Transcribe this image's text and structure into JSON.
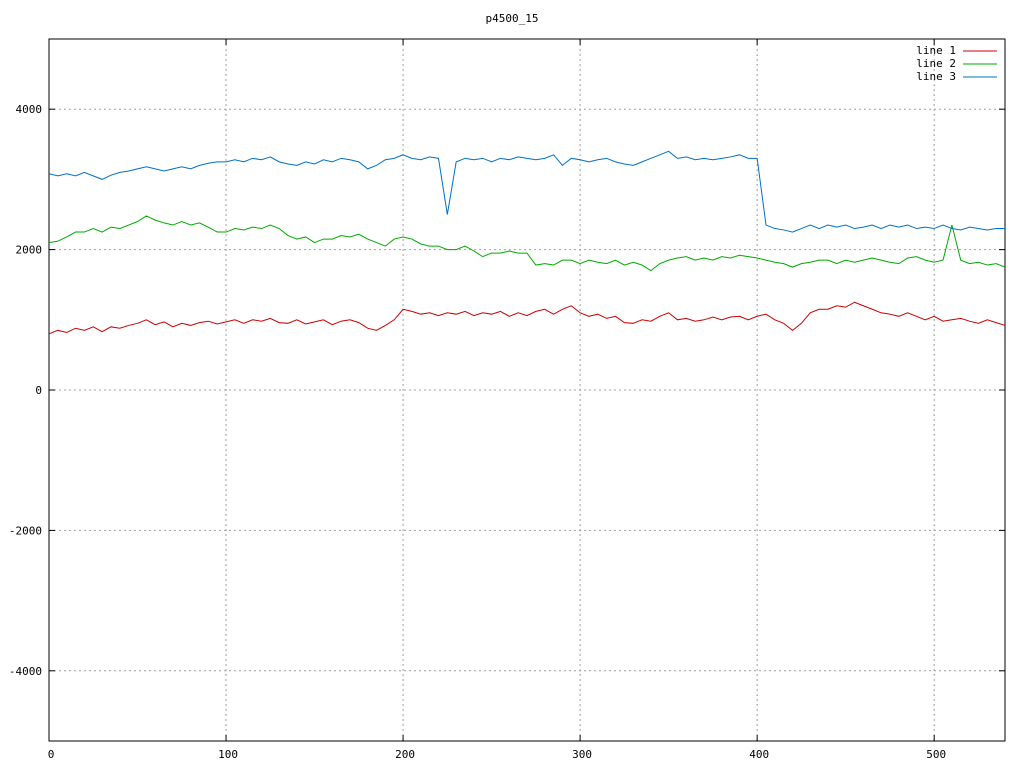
{
  "chart_data": {
    "type": "line",
    "title": "p4500_15",
    "x": [
      0,
      5,
      10,
      15,
      20,
      25,
      30,
      35,
      40,
      45,
      50,
      55,
      60,
      65,
      70,
      75,
      80,
      85,
      90,
      95,
      100,
      105,
      110,
      115,
      120,
      125,
      130,
      135,
      140,
      145,
      150,
      155,
      160,
      165,
      170,
      175,
      180,
      185,
      190,
      195,
      200,
      205,
      210,
      215,
      220,
      225,
      230,
      235,
      240,
      245,
      250,
      255,
      260,
      265,
      270,
      275,
      280,
      285,
      290,
      295,
      300,
      305,
      310,
      315,
      320,
      325,
      330,
      335,
      340,
      345,
      350,
      355,
      360,
      365,
      370,
      375,
      380,
      385,
      390,
      395,
      400,
      405,
      410,
      415,
      420,
      425,
      430,
      435,
      440,
      445,
      450,
      455,
      460,
      465,
      470,
      475,
      480,
      485,
      490,
      495,
      500,
      505,
      510,
      515,
      520,
      525,
      530,
      535,
      540
    ],
    "series": [
      {
        "name": "line 1",
        "color": "#cc0000",
        "values": [
          800,
          850,
          820,
          880,
          850,
          900,
          830,
          900,
          880,
          920,
          950,
          1000,
          930,
          970,
          900,
          950,
          920,
          960,
          980,
          940,
          970,
          1000,
          950,
          1000,
          980,
          1020,
          960,
          950,
          1000,
          940,
          970,
          1000,
          930,
          980,
          1000,
          960,
          880,
          850,
          920,
          1000,
          1150,
          1120,
          1080,
          1100,
          1060,
          1100,
          1080,
          1120,
          1060,
          1100,
          1080,
          1120,
          1050,
          1100,
          1060,
          1120,
          1150,
          1080,
          1150,
          1200,
          1100,
          1050,
          1080,
          1020,
          1050,
          960,
          950,
          1000,
          980,
          1050,
          1100,
          1000,
          1020,
          980,
          1000,
          1040,
          1000,
          1040,
          1050,
          1000,
          1050,
          1080,
          1000,
          950,
          850,
          950,
          1100,
          1150,
          1150,
          1200,
          1180,
          1250,
          1200,
          1150,
          1100,
          1080,
          1050,
          1100,
          1050,
          1000,
          1050,
          980,
          1000,
          1020,
          980,
          950,
          1000,
          960,
          920
        ]
      },
      {
        "name": "line 2",
        "color": "#00aa00",
        "values": [
          2100,
          2120,
          2180,
          2250,
          2250,
          2300,
          2250,
          2320,
          2300,
          2350,
          2400,
          2480,
          2420,
          2380,
          2350,
          2400,
          2350,
          2380,
          2320,
          2250,
          2250,
          2300,
          2280,
          2320,
          2300,
          2350,
          2300,
          2200,
          2150,
          2180,
          2100,
          2150,
          2150,
          2200,
          2180,
          2220,
          2150,
          2100,
          2050,
          2150,
          2180,
          2150,
          2080,
          2050,
          2050,
          2000,
          2000,
          2050,
          1980,
          1900,
          1950,
          1950,
          1980,
          1950,
          1950,
          1780,
          1800,
          1780,
          1850,
          1850,
          1800,
          1850,
          1820,
          1800,
          1850,
          1780,
          1820,
          1780,
          1700,
          1800,
          1850,
          1880,
          1900,
          1850,
          1880,
          1850,
          1900,
          1880,
          1920,
          1900,
          1880,
          1850,
          1820,
          1800,
          1750,
          1800,
          1820,
          1850,
          1850,
          1800,
          1850,
          1820,
          1850,
          1880,
          1850,
          1820,
          1800,
          1880,
          1900,
          1850,
          1820,
          1850,
          2350,
          1850,
          1800,
          1820,
          1780,
          1800,
          1750
        ]
      },
      {
        "name": "line 3",
        "color": "#0070c8",
        "values": [
          3080,
          3050,
          3080,
          3050,
          3100,
          3050,
          3000,
          3060,
          3100,
          3120,
          3150,
          3180,
          3150,
          3120,
          3150,
          3180,
          3150,
          3200,
          3230,
          3250,
          3250,
          3280,
          3250,
          3300,
          3280,
          3320,
          3250,
          3220,
          3200,
          3250,
          3220,
          3280,
          3250,
          3300,
          3280,
          3250,
          3150,
          3200,
          3280,
          3300,
          3350,
          3300,
          3280,
          3320,
          3300,
          2500,
          3250,
          3300,
          3280,
          3300,
          3250,
          3300,
          3280,
          3320,
          3300,
          3280,
          3300,
          3350,
          3200,
          3300,
          3280,
          3250,
          3280,
          3300,
          3250,
          3220,
          3200,
          3250,
          3300,
          3350,
          3400,
          3300,
          3320,
          3280,
          3300,
          3280,
          3300,
          3320,
          3350,
          3300,
          3300,
          2350,
          2300,
          2280,
          2250,
          2300,
          2350,
          2300,
          2350,
          2320,
          2350,
          2300,
          2320,
          2350,
          2300,
          2350,
          2320,
          2350,
          2300,
          2320,
          2300,
          2350,
          2300,
          2280,
          2320,
          2300,
          2280,
          2300,
          2300
        ]
      }
    ],
    "xlim": [
      0,
      540
    ],
    "ylim": [
      -5000,
      5000
    ],
    "xticks": [
      0,
      100,
      200,
      300,
      400,
      500
    ],
    "yticks": [
      -4000,
      -2000,
      0,
      2000,
      4000
    ],
    "grid": true,
    "legend": "top-right"
  }
}
